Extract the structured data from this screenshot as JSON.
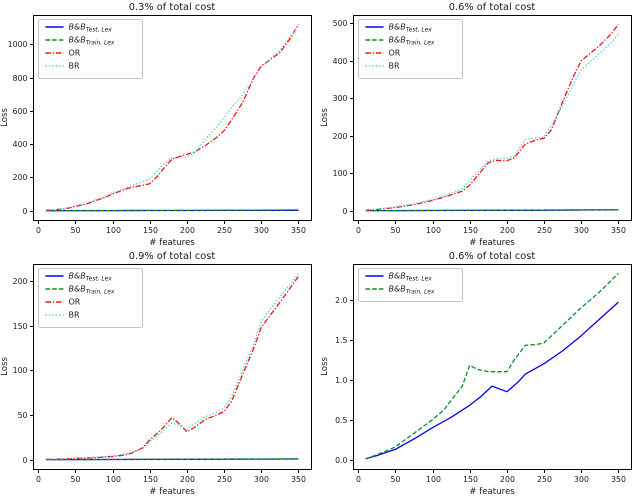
{
  "figure": {
    "background": "#ffffff"
  },
  "series_defs": {
    "bb_test": {
      "label_main": "B&B",
      "label_sub": "Test, Lex",
      "italic": true,
      "color": "#0202f0",
      "style": "solid"
    },
    "bb_train": {
      "label_main": "B&B",
      "label_sub": "Train, Lex",
      "italic": true,
      "color": "#0e8c2a",
      "style": "dashed"
    },
    "or": {
      "label_main": "OR",
      "label_sub": "",
      "italic": false,
      "color": "#f21414",
      "style": "dashdot"
    },
    "br": {
      "label_main": "BR",
      "label_sub": "",
      "italic": false,
      "color": "#44ccd6",
      "style": "dotted"
    }
  },
  "chart_data": [
    {
      "type": "line",
      "title": "0.3% of total cost",
      "xlabel": "# features",
      "ylabel": "Loss",
      "xlim": [
        -7,
        367
      ],
      "ylim": [
        -56,
        1176
      ],
      "x_ticks": [
        0,
        50,
        100,
        150,
        200,
        250,
        300,
        350
      ],
      "x_tick_labels": [
        "0",
        "50",
        "100",
        "150",
        "200",
        "250",
        "300",
        "350"
      ],
      "y_ticks": [
        0,
        200,
        400,
        600,
        800,
        1000
      ],
      "y_tick_labels": [
        "0",
        "200",
        "400",
        "600",
        "800",
        "1000"
      ],
      "legend": [
        "bb_test",
        "bb_train",
        "or",
        "br"
      ],
      "grid": false,
      "legend_position": "upper-left",
      "series": [
        {
          "key": "bb_test",
          "x": [
            10,
            50,
            100,
            150,
            200,
            250,
            300,
            350
          ],
          "y": [
            0.05,
            0.3,
            0.55,
            0.85,
            1.1,
            1.4,
            1.7,
            2.0
          ]
        },
        {
          "key": "bb_train",
          "x": [
            10,
            50,
            100,
            150,
            200,
            250,
            300,
            350
          ],
          "y": [
            0.05,
            0.4,
            0.9,
            1.6,
            2.1,
            2.7,
            3.6,
            4.7
          ]
        },
        {
          "key": "or",
          "x": [
            10,
            25,
            40,
            50,
            65,
            75,
            90,
            100,
            115,
            125,
            140,
            150,
            160,
            170,
            180,
            190,
            200,
            210,
            225,
            240,
            250,
            260,
            275,
            290,
            300,
            310,
            325,
            340,
            350
          ],
          "y": [
            2,
            6,
            15,
            25,
            40,
            57,
            80,
            100,
            125,
            140,
            152,
            162,
            205,
            260,
            310,
            325,
            338,
            352,
            392,
            440,
            480,
            545,
            650,
            800,
            870,
            900,
            950,
            1040,
            1120
          ]
        },
        {
          "key": "br",
          "x": [
            10,
            25,
            40,
            50,
            65,
            75,
            90,
            100,
            115,
            125,
            140,
            150,
            160,
            170,
            180,
            190,
            200,
            210,
            225,
            240,
            250,
            260,
            275,
            290,
            300,
            310,
            325,
            340,
            350
          ],
          "y": [
            2,
            7,
            18,
            30,
            46,
            62,
            86,
            106,
            132,
            152,
            172,
            192,
            238,
            285,
            318,
            320,
            322,
            345,
            430,
            505,
            558,
            620,
            695,
            795,
            862,
            905,
            962,
            1052,
            1108
          ]
        }
      ]
    },
    {
      "type": "line",
      "title": "0.6% of total cost",
      "xlabel": "# features",
      "ylabel": "Loss",
      "xlim": [
        -7,
        367
      ],
      "ylim": [
        -25,
        522
      ],
      "x_ticks": [
        0,
        50,
        100,
        150,
        200,
        250,
        300,
        350
      ],
      "x_tick_labels": [
        "0",
        "50",
        "100",
        "150",
        "200",
        "250",
        "300",
        "350"
      ],
      "y_ticks": [
        0,
        100,
        200,
        300,
        400,
        500
      ],
      "y_tick_labels": [
        "0",
        "100",
        "200",
        "300",
        "400",
        "500"
      ],
      "legend": [
        "bb_test",
        "bb_train",
        "or",
        "br"
      ],
      "grid": false,
      "legend_position": "upper-left",
      "series": [
        {
          "key": "bb_test",
          "x": [
            10,
            50,
            100,
            150,
            200,
            250,
            300,
            350
          ],
          "y": [
            0.01,
            0.13,
            0.4,
            0.68,
            0.85,
            1.2,
            1.55,
            1.97
          ]
        },
        {
          "key": "bb_train",
          "x": [
            10,
            50,
            100,
            150,
            200,
            250,
            300,
            350
          ],
          "y": [
            0.01,
            0.16,
            0.5,
            1.18,
            1.1,
            1.46,
            1.9,
            2.33
          ]
        },
        {
          "key": "or",
          "x": [
            10,
            25,
            50,
            75,
            100,
            125,
            140,
            150,
            160,
            175,
            185,
            200,
            210,
            225,
            240,
            250,
            260,
            275,
            290,
            300,
            310,
            325,
            340,
            350
          ],
          "y": [
            1,
            3,
            8,
            16,
            27,
            42,
            52,
            68,
            92,
            128,
            134,
            133,
            141,
            178,
            189,
            193,
            216,
            290,
            360,
            400,
            416,
            441,
            471,
            497
          ]
        },
        {
          "key": "br",
          "x": [
            10,
            25,
            50,
            75,
            100,
            125,
            140,
            150,
            160,
            175,
            185,
            200,
            210,
            225,
            240,
            250,
            260,
            275,
            290,
            300,
            310,
            325,
            340,
            350
          ],
          "y": [
            1,
            4,
            10,
            18,
            30,
            46,
            58,
            80,
            102,
            132,
            138,
            140,
            146,
            190,
            194,
            196,
            228,
            280,
            340,
            376,
            394,
            420,
            447,
            470
          ]
        }
      ]
    },
    {
      "type": "line",
      "title": "0.9% of total cost",
      "xlabel": "# features",
      "ylabel": "Loss",
      "xlim": [
        -7,
        367
      ],
      "ylim": [
        -10.5,
        219
      ],
      "x_ticks": [
        0,
        50,
        100,
        150,
        200,
        250,
        300,
        350
      ],
      "x_tick_labels": [
        "0",
        "50",
        "100",
        "150",
        "200",
        "250",
        "300",
        "350"
      ],
      "y_ticks": [
        0,
        50,
        100,
        150,
        200
      ],
      "y_tick_labels": [
        "0",
        "50",
        "100",
        "150",
        "200"
      ],
      "legend": [
        "bb_test",
        "bb_train",
        "or",
        "br"
      ],
      "grid": false,
      "legend_position": "upper-left",
      "series": [
        {
          "key": "bb_test",
          "x": [
            10,
            50,
            100,
            150,
            200,
            250,
            300,
            350
          ],
          "y": [
            0.005,
            0.05,
            0.15,
            0.25,
            0.32,
            0.45,
            0.6,
            0.75
          ]
        },
        {
          "key": "bb_train",
          "x": [
            10,
            50,
            100,
            150,
            200,
            250,
            300,
            350
          ],
          "y": [
            0.005,
            0.07,
            0.2,
            0.42,
            0.4,
            0.55,
            0.72,
            0.92
          ]
        },
        {
          "key": "or",
          "x": [
            10,
            25,
            50,
            75,
            100,
            115,
            125,
            140,
            150,
            165,
            180,
            190,
            200,
            210,
            225,
            240,
            250,
            260,
            275,
            290,
            300,
            325,
            350
          ],
          "y": [
            0.3,
            0.6,
            1.2,
            2,
            3.5,
            5,
            7,
            13,
            22,
            33,
            47,
            40,
            31,
            36,
            45,
            50,
            54,
            65,
            95,
            125,
            148,
            176,
            205
          ]
        },
        {
          "key": "br",
          "x": [
            10,
            25,
            50,
            75,
            100,
            115,
            125,
            140,
            150,
            165,
            180,
            190,
            200,
            210,
            225,
            240,
            250,
            260,
            275,
            290,
            300,
            325,
            350
          ],
          "y": [
            0.3,
            0.7,
            1.5,
            2.5,
            4,
            6,
            8,
            12,
            20,
            30,
            41,
            38,
            34,
            40,
            48,
            53,
            58,
            70,
            100,
            130,
            155,
            182,
            208
          ]
        }
      ]
    },
    {
      "type": "line",
      "title": "0.6% of total cost",
      "xlabel": "# features",
      "ylabel": "Loss",
      "xlim": [
        -7,
        367
      ],
      "ylim": [
        -0.117,
        2.447
      ],
      "x_ticks": [
        0,
        50,
        100,
        150,
        200,
        250,
        300,
        350
      ],
      "x_tick_labels": [
        "0",
        "50",
        "100",
        "150",
        "200",
        "250",
        "300",
        "350"
      ],
      "y_ticks": [
        0.0,
        0.5,
        1.0,
        1.5,
        2.0
      ],
      "y_tick_labels": [
        "0.0",
        "0.5",
        "1.0",
        "1.5",
        "2.0"
      ],
      "legend": [
        "bb_test",
        "bb_train"
      ],
      "grid": false,
      "legend_position": "upper-left",
      "series": [
        {
          "key": "bb_test",
          "x": [
            10,
            25,
            50,
            75,
            100,
            125,
            150,
            165,
            180,
            200,
            215,
            225,
            250,
            275,
            300,
            325,
            350
          ],
          "y": [
            0.01,
            0.05,
            0.13,
            0.26,
            0.4,
            0.53,
            0.68,
            0.79,
            0.92,
            0.85,
            0.97,
            1.07,
            1.2,
            1.36,
            1.55,
            1.76,
            1.97
          ]
        },
        {
          "key": "bb_train",
          "x": [
            10,
            25,
            50,
            75,
            100,
            115,
            125,
            140,
            150,
            160,
            175,
            200,
            210,
            225,
            240,
            250,
            275,
            300,
            325,
            350
          ],
          "y": [
            0.01,
            0.06,
            0.16,
            0.33,
            0.5,
            0.62,
            0.74,
            0.92,
            1.18,
            1.13,
            1.1,
            1.1,
            1.25,
            1.43,
            1.44,
            1.46,
            1.68,
            1.9,
            2.1,
            2.33
          ]
        }
      ]
    }
  ]
}
